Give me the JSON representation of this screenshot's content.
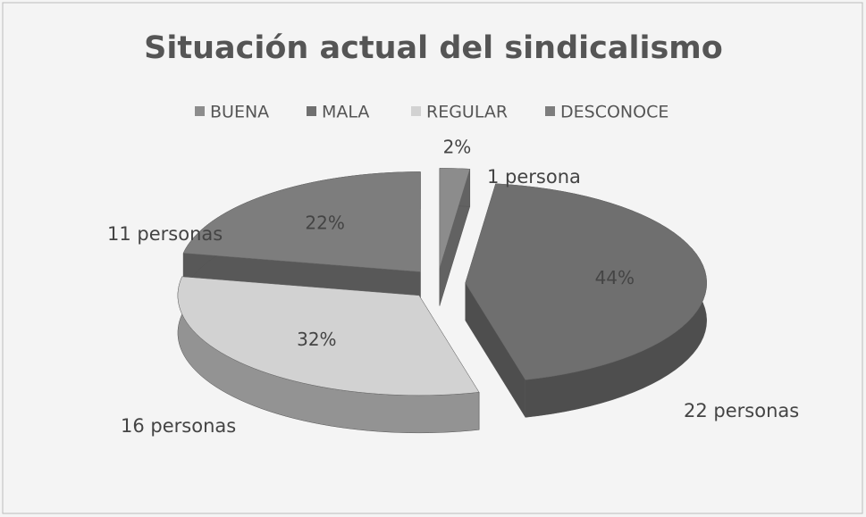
{
  "chart_data": {
    "type": "pie3d",
    "title": "Situación actual del sindicalismo",
    "categories": [
      "BUENA",
      "MALA",
      "REGULAR",
      "DESCONOCE"
    ],
    "values": [
      2,
      44,
      32,
      22
    ],
    "value_labels": [
      "2%",
      "44%",
      "32%",
      "22%"
    ],
    "annotations": [
      "1 persona",
      "22 personas",
      "16 personas",
      "11 personas"
    ],
    "colors": [
      "#8c8c8c",
      "#6f6f6f",
      "#d2d2d2",
      "#7d7d7d"
    ],
    "legend": "top"
  }
}
